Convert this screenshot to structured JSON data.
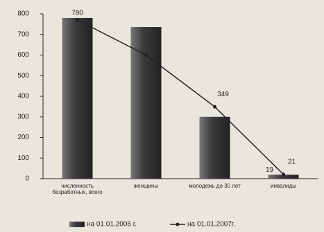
{
  "chart_data": {
    "type": "bar-line",
    "categories": [
      "численность безработных, всего",
      "женщины",
      "молодежь до 30 лет",
      "инвалиды"
    ],
    "series": [
      {
        "name": "на 01.01.2006 г.",
        "type": "bar",
        "color": "#3c3c3c",
        "values": [
          780,
          736,
          300,
          19
        ],
        "value_labels": [
          "780",
          null,
          null,
          "19"
        ]
      },
      {
        "name": "на 01.01.2007г.",
        "type": "line",
        "color": "#222222",
        "values": [
          770,
          600,
          349,
          21
        ],
        "value_labels": [
          null,
          null,
          "349",
          "21"
        ]
      }
    ],
    "ylim": [
      0,
      800
    ],
    "yticks": [
      0,
      100,
      200,
      300,
      400,
      500,
      600,
      700,
      800
    ],
    "grid": false
  }
}
